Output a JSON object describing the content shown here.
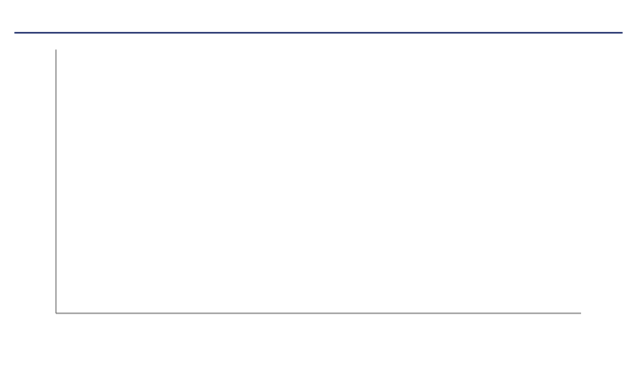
{
  "title": "",
  "source": "",
  "chart_data": {
    "type": "bar",
    "title": "",
    "categories": [],
    "series": []
  }
}
